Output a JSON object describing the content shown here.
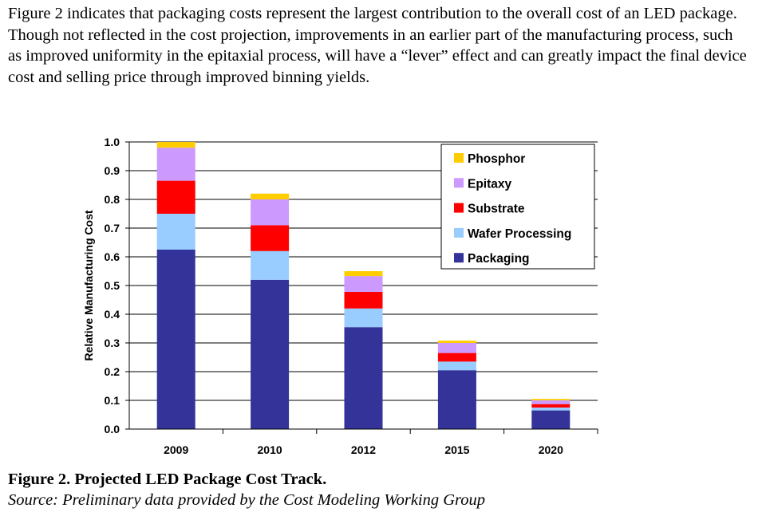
{
  "paragraph": "Figure 2 indicates that packaging costs represent the largest contribution to the overall cost of an LED package.  Though not reflected in the cost projection, improvements in an earlier part of the manufacturing process, such as improved uniformity in the epitaxial process, will have a “lever” effect and can greatly impact the final device cost and selling price through improved binning yields.",
  "caption": {
    "title": "Figure 2.  Projected LED Package Cost Track.",
    "source": "Source: Preliminary data provided by the Cost Modeling Working Group"
  },
  "chart_data": {
    "type": "bar",
    "stacked": true,
    "categories": [
      "2009",
      "2010",
      "2012",
      "2015",
      "2020"
    ],
    "ylabel": "Relative Manufacturing Cost",
    "xlabel": "",
    "ylim": [
      0,
      1.0
    ],
    "yticks": [
      "0.0",
      "0.1",
      "0.2",
      "0.3",
      "0.4",
      "0.5",
      "0.6",
      "0.7",
      "0.8",
      "0.9",
      "1.0"
    ],
    "grid": true,
    "legend_position": "top-right",
    "series": [
      {
        "name": "Packaging",
        "color": "#333399",
        "values": [
          0.625,
          0.52,
          0.355,
          0.205,
          0.065
        ]
      },
      {
        "name": "Wafer Processing",
        "color": "#99ccff",
        "values": [
          0.125,
          0.1,
          0.065,
          0.03,
          0.01
        ]
      },
      {
        "name": "Substrate",
        "color": "#ff0000",
        "values": [
          0.115,
          0.09,
          0.058,
          0.03,
          0.012
        ]
      },
      {
        "name": "Epitaxy",
        "color": "#cc99ff",
        "values": [
          0.115,
          0.09,
          0.055,
          0.035,
          0.013
        ]
      },
      {
        "name": "Phosphor",
        "color": "#ffcc00",
        "values": [
          0.02,
          0.02,
          0.017,
          0.008,
          0.005
        ]
      }
    ]
  }
}
